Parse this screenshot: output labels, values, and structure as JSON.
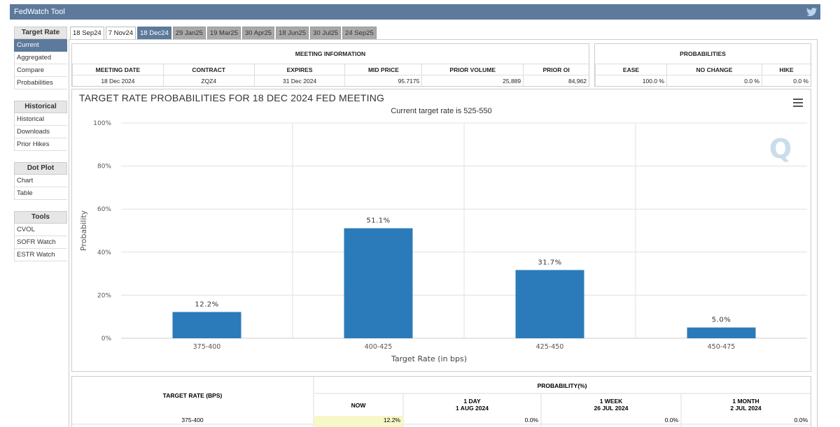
{
  "app": {
    "title": "FedWatch Tool"
  },
  "sidebar": {
    "sections": [
      {
        "heading": "Target Rate",
        "items": [
          "Current",
          "Aggregated",
          "Compare",
          "Probabilities"
        ]
      },
      {
        "heading": "Historical",
        "items": [
          "Historical",
          "Downloads",
          "Prior Hikes"
        ]
      },
      {
        "heading": "Dot Plot",
        "items": [
          "Chart",
          "Table"
        ]
      },
      {
        "heading": "Tools",
        "items": [
          "CVOL",
          "SOFR Watch",
          "ESTR Watch"
        ]
      }
    ]
  },
  "tabs": [
    "18 Sep24",
    "7 Nov24",
    "18 Dec24",
    "29 Jan25",
    "19 Mar25",
    "30 Apr25",
    "18 Jun25",
    "30 Jul25",
    "24 Sep25"
  ],
  "active_tab": "18 Dec24",
  "meeting_info": {
    "title": "MEETING INFORMATION",
    "headers": [
      "MEETING DATE",
      "CONTRACT",
      "EXPIRES",
      "MID PRICE",
      "PRIOR VOLUME",
      "PRIOR OI"
    ],
    "values": [
      "18 Dec 2024",
      "ZQZ4",
      "31 Dec 2024",
      "95.7175",
      "25,889",
      "84,962"
    ]
  },
  "probabilities": {
    "title": "PROBABILITIES",
    "headers": [
      "EASE",
      "NO CHANGE",
      "HIKE"
    ],
    "values": [
      "100.0 %",
      "0.0 %",
      "0.0 %"
    ]
  },
  "chart_data": {
    "type": "bar",
    "title": "TARGET RATE PROBABILITIES FOR 18 DEC 2024 FED MEETING",
    "subtitle": "Current target rate is 525-550",
    "xlabel": "Target Rate (in bps)",
    "ylabel": "Probability",
    "categories": [
      "375-400",
      "400-425",
      "425-450",
      "450-475"
    ],
    "values": [
      12.2,
      51.1,
      31.7,
      5.0
    ],
    "data_labels": [
      "12.2%",
      "51.1%",
      "31.7%",
      "5.0%"
    ],
    "yticks": [
      "0%",
      "20%",
      "40%",
      "60%",
      "80%",
      "100%"
    ],
    "ylim": [
      0,
      100
    ],
    "grid": true,
    "bar_color": "#2b7bba"
  },
  "bottom_table": {
    "target_header": "TARGET RATE (BPS)",
    "prob_header": "PROBABILITY(%)",
    "cols": [
      {
        "l1": "NOW",
        "l2": ""
      },
      {
        "l1": "1 DAY",
        "l2": "1 AUG 2024"
      },
      {
        "l1": "1 WEEK",
        "l2": "26 JUL 2024"
      },
      {
        "l1": "1 MONTH",
        "l2": "2 JUL 2024"
      }
    ],
    "row": {
      "rate": "375-400",
      "values": [
        "12.2%",
        "0.0%",
        "0.0%",
        "0.0%"
      ]
    }
  }
}
